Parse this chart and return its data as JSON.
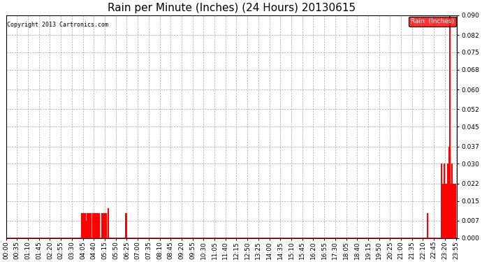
{
  "title": "Rain per Minute (Inches) (24 Hours) 20130615",
  "copyright_text": "Copyright 2013 Cartronics.com",
  "legend_label": "Rain  (Inches)",
  "legend_bg": "#ff0000",
  "legend_text_color": "#ffffff",
  "line_color": "#ff0000",
  "background_color": "#ffffff",
  "plot_bg_color": "#ffffff",
  "grid_color": "#aaaaaa",
  "ylim": [
    0.0,
    0.09
  ],
  "yticks": [
    0.0,
    0.007,
    0.015,
    0.022,
    0.03,
    0.037,
    0.045,
    0.052,
    0.06,
    0.068,
    0.075,
    0.082,
    0.09
  ],
  "title_fontsize": 11,
  "axis_fontsize": 6.5,
  "copyright_fontsize": 6,
  "total_minutes": 1440,
  "xtick_interval": 35,
  "rain_events": [
    {
      "minute": 241,
      "value": 0.01
    },
    {
      "minute": 243,
      "value": 0.01
    },
    {
      "minute": 245,
      "value": 0.01
    },
    {
      "minute": 248,
      "value": 0.007
    },
    {
      "minute": 250,
      "value": 0.01
    },
    {
      "minute": 252,
      "value": 0.01
    },
    {
      "minute": 253,
      "value": 0.007
    },
    {
      "minute": 255,
      "value": 0.007
    },
    {
      "minute": 257,
      "value": 0.007
    },
    {
      "minute": 260,
      "value": 0.01
    },
    {
      "minute": 262,
      "value": 0.01
    },
    {
      "minute": 263,
      "value": 0.01
    },
    {
      "minute": 265,
      "value": 0.01
    },
    {
      "minute": 267,
      "value": 0.01
    },
    {
      "minute": 269,
      "value": 0.01
    },
    {
      "minute": 271,
      "value": 0.01
    },
    {
      "minute": 278,
      "value": 0.01
    },
    {
      "minute": 280,
      "value": 0.01
    },
    {
      "minute": 282,
      "value": 0.01
    },
    {
      "minute": 285,
      "value": 0.01
    },
    {
      "minute": 287,
      "value": 0.01
    },
    {
      "minute": 289,
      "value": 0.01
    },
    {
      "minute": 291,
      "value": 0.01
    },
    {
      "minute": 293,
      "value": 0.01
    },
    {
      "minute": 295,
      "value": 0.01
    },
    {
      "minute": 297,
      "value": 0.01
    },
    {
      "minute": 305,
      "value": 0.01
    },
    {
      "minute": 307,
      "value": 0.01
    },
    {
      "minute": 309,
      "value": 0.01
    },
    {
      "minute": 311,
      "value": 0.01
    },
    {
      "minute": 313,
      "value": 0.01
    },
    {
      "minute": 315,
      "value": 0.01
    },
    {
      "minute": 317,
      "value": 0.01
    },
    {
      "minute": 319,
      "value": 0.01
    },
    {
      "minute": 325,
      "value": 0.012
    },
    {
      "minute": 382,
      "value": 0.01
    },
    {
      "minute": 384,
      "value": 0.01
    },
    {
      "minute": 1345,
      "value": 0.01
    },
    {
      "minute": 1390,
      "value": 0.03
    },
    {
      "minute": 1393,
      "value": 0.022
    },
    {
      "minute": 1395,
      "value": 0.022
    },
    {
      "minute": 1397,
      "value": 0.022
    },
    {
      "minute": 1399,
      "value": 0.03
    },
    {
      "minute": 1401,
      "value": 0.022
    },
    {
      "minute": 1403,
      "value": 0.022
    },
    {
      "minute": 1405,
      "value": 0.022
    },
    {
      "minute": 1407,
      "value": 0.022
    },
    {
      "minute": 1409,
      "value": 0.03
    },
    {
      "minute": 1411,
      "value": 0.03
    },
    {
      "minute": 1413,
      "value": 0.037
    },
    {
      "minute": 1415,
      "value": 0.09
    },
    {
      "minute": 1417,
      "value": 0.022
    },
    {
      "minute": 1419,
      "value": 0.022
    },
    {
      "minute": 1421,
      "value": 0.022
    },
    {
      "minute": 1423,
      "value": 0.03
    },
    {
      "minute": 1425,
      "value": 0.022
    },
    {
      "minute": 1427,
      "value": 0.022
    },
    {
      "minute": 1429,
      "value": 0.022
    },
    {
      "minute": 1431,
      "value": 0.022
    },
    {
      "minute": 1433,
      "value": 0.022
    }
  ]
}
